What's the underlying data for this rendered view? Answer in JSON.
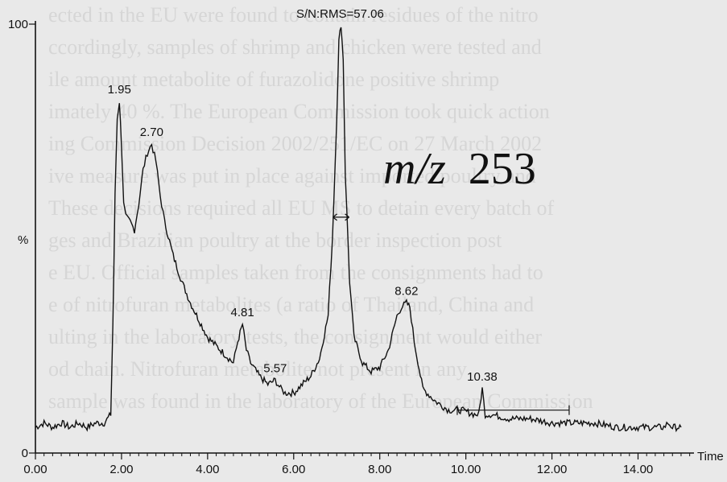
{
  "chart_data": {
    "type": "line",
    "title": "",
    "annotation_mz": {
      "italic": "m/z",
      "value": "253"
    },
    "sn_label": "S/N:RMS=57.06",
    "xlabel": "Time",
    "ylabel": "%",
    "xlim": [
      0.0,
      15.3
    ],
    "ylim": [
      0,
      100
    ],
    "x_ticks": [
      "0.00",
      "2.00",
      "4.00",
      "6.00",
      "8.00",
      "10.00",
      "12.00",
      "14.00"
    ],
    "x_tick_values": [
      0,
      2,
      4,
      6,
      8,
      10,
      12,
      14
    ],
    "y_ticks": [
      "0",
      "100"
    ],
    "y_tick_values": [
      0,
      100
    ],
    "grid": false,
    "series": [
      {
        "x": [
          0.0,
          0.2,
          0.4,
          0.6,
          0.8,
          1.0,
          1.2,
          1.4,
          1.6,
          1.75,
          1.8,
          1.85,
          1.9,
          1.95,
          2.0,
          2.05,
          2.1,
          2.2,
          2.3,
          2.4,
          2.5,
          2.6,
          2.7,
          2.8,
          2.9,
          3.0,
          3.2,
          3.4,
          3.6,
          3.8,
          4.0,
          4.2,
          4.4,
          4.6,
          4.7,
          4.81,
          4.9,
          5.0,
          5.2,
          5.4,
          5.57,
          5.7,
          5.8,
          6.0,
          6.2,
          6.4,
          6.6,
          6.8,
          6.9,
          7.0,
          7.05,
          7.1,
          7.15,
          7.2,
          7.3,
          7.4,
          7.6,
          7.8,
          8.0,
          8.2,
          8.4,
          8.5,
          8.62,
          8.7,
          8.8,
          9.0,
          9.3,
          9.6,
          9.9,
          10.2,
          10.3,
          10.38,
          10.45,
          10.6,
          11.0,
          11.5,
          12.0,
          12.5,
          13.0,
          13.5,
          14.0,
          14.6,
          14.7,
          14.8,
          15.0
        ],
        "y": [
          6,
          7,
          6,
          7,
          6,
          7,
          6,
          7,
          7,
          9,
          30,
          60,
          78,
          82,
          72,
          58,
          55,
          54,
          52,
          58,
          66,
          70,
          72,
          68,
          60,
          54,
          46,
          40,
          35,
          31,
          27,
          25,
          23,
          21,
          26,
          30,
          24,
          21,
          18,
          16,
          17,
          15,
          14,
          14,
          16,
          18,
          22,
          32,
          50,
          78,
          96,
          100,
          92,
          65,
          40,
          27,
          21,
          19,
          20,
          24,
          32,
          34,
          35,
          34,
          26,
          15,
          12,
          10,
          10,
          9,
          9,
          15,
          9,
          9,
          8,
          8,
          7,
          7,
          7,
          6,
          6,
          6,
          7,
          6,
          6
        ]
      }
    ],
    "peak_labels": [
      {
        "label": "1.95",
        "x": 1.95,
        "y": 82
      },
      {
        "label": "2.70",
        "x": 2.7,
        "y": 72
      },
      {
        "label": "4.81",
        "x": 4.81,
        "y": 30
      },
      {
        "label": "5.57",
        "x": 5.57,
        "y": 17
      },
      {
        "label": "8.62",
        "x": 8.62,
        "y": 35
      },
      {
        "label": "10.38",
        "x": 10.38,
        "y": 15
      }
    ],
    "sn_signal_marker": {
      "x": 7.1,
      "y_top": 100,
      "y_bottom": 55
    },
    "noise_range": {
      "x_start": 9.8,
      "x_end": 12.4,
      "y": 10
    }
  }
}
